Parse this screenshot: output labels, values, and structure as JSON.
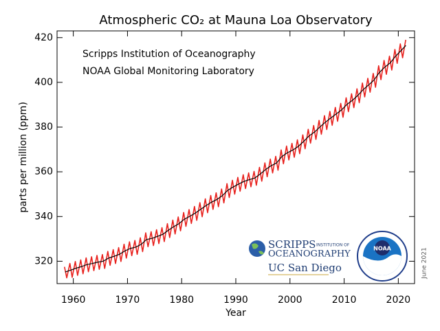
{
  "chart_data": {
    "type": "line",
    "title": "Atmospheric CO₂ at Mauna Loa Observatory",
    "annotations": [
      "Scripps Institution of Oceanography",
      "NOAA Global Monitoring Laboratory"
    ],
    "logos": {
      "scripps": "SCRIPPS",
      "scripps_sub": "INSTITUTION OF",
      "scripps_name": "OCEANOGRAPHY",
      "ucsd": "UC San Diego",
      "noaa": "NOAA"
    },
    "date_note": "June 2021",
    "x_label": "Year",
    "y_label": "parts per million (ppm)",
    "xlim": [
      1957,
      2023
    ],
    "ylim": [
      310,
      423
    ],
    "xticks": [
      1960,
      1970,
      1980,
      1990,
      2000,
      2010,
      2020
    ],
    "yticks": [
      320,
      340,
      360,
      380,
      400,
      420
    ],
    "series": [
      {
        "color": "#e8201c",
        "x": [
          1958.37,
          1958.79,
          1959.37,
          1959.79,
          1960.37,
          1960.79,
          1961.37,
          1961.79,
          1962.37,
          1962.79,
          1963.37,
          1963.79,
          1964.37,
          1964.79,
          1965.37,
          1965.79,
          1966.37,
          1966.79,
          1967.37,
          1967.79,
          1968.37,
          1968.79,
          1969.37,
          1969.79,
          1970.37,
          1970.79,
          1971.37,
          1971.79,
          1972.37,
          1972.79,
          1973.37,
          1973.79,
          1974.37,
          1974.79,
          1975.37,
          1975.79,
          1976.37,
          1976.79,
          1977.37,
          1977.79,
          1978.37,
          1978.79,
          1979.37,
          1979.79,
          1980.37,
          1980.79,
          1981.37,
          1981.79,
          1982.37,
          1982.79,
          1983.37,
          1983.79,
          1984.37,
          1984.79,
          1985.37,
          1985.79,
          1986.37,
          1986.79,
          1987.37,
          1987.79,
          1988.37,
          1988.79,
          1989.37,
          1989.79,
          1990.37,
          1990.79,
          1991.37,
          1991.79,
          1992.37,
          1992.79,
          1993.37,
          1993.79,
          1994.37,
          1994.79,
          1995.37,
          1995.79,
          1996.37,
          1996.79,
          1997.37,
          1997.79,
          1998.37,
          1998.79,
          1999.37,
          1999.79,
          2000.37,
          2000.79,
          2001.37,
          2001.79,
          2002.37,
          2002.79,
          2003.37,
          2003.79,
          2004.37,
          2004.79,
          2005.37,
          2005.79,
          2006.37,
          2006.79,
          2007.37,
          2007.79,
          2008.37,
          2008.79,
          2009.37,
          2009.79,
          2010.37,
          2010.79,
          2011.37,
          2011.79,
          2012.37,
          2012.79,
          2013.37,
          2013.79,
          2014.37,
          2014.79,
          2015.37,
          2015.79,
          2016.37,
          2016.79,
          2017.37,
          2017.79,
          2018.37,
          2018.79,
          2019.37,
          2019.79,
          2020.37,
          2020.79,
          2021.37
        ],
        "values": [
          317.5,
          312.6,
          319.0,
          312.8,
          319.9,
          313.7,
          320.6,
          314.4,
          321.5,
          315.3,
          322.0,
          315.8,
          322.6,
          316.4,
          323.0,
          316.8,
          324.4,
          318.2,
          325.2,
          319.0,
          326.1,
          319.9,
          327.6,
          321.4,
          328.7,
          322.5,
          329.3,
          323.1,
          330.5,
          324.3,
          332.7,
          326.5,
          333.2,
          327.0,
          334.1,
          327.9,
          335.0,
          328.8,
          336.8,
          330.6,
          338.4,
          332.2,
          339.8,
          333.6,
          341.8,
          335.6,
          343.1,
          336.9,
          344.5,
          338.3,
          346.2,
          339.9,
          347.9,
          341.7,
          349.4,
          343.2,
          350.6,
          344.4,
          352.3,
          346.1,
          354.7,
          348.5,
          356.2,
          350.0,
          357.5,
          351.3,
          358.7,
          352.5,
          359.5,
          353.3,
          360.2,
          354.0,
          362.0,
          355.8,
          364.0,
          357.8,
          365.7,
          359.5,
          366.9,
          360.7,
          369.8,
          363.6,
          371.5,
          365.3,
          372.7,
          366.5,
          374.3,
          368.1,
          376.5,
          370.3,
          379.0,
          372.8,
          380.7,
          374.5,
          383.0,
          376.8,
          385.1,
          378.9,
          387.0,
          380.8,
          388.8,
          382.6,
          390.6,
          384.4,
          393.1,
          386.9,
          394.9,
          388.7,
          397.1,
          390.9,
          399.7,
          393.5,
          401.8,
          395.6,
          404.0,
          397.8,
          407.4,
          401.2,
          409.8,
          403.6,
          411.7,
          405.5,
          414.7,
          408.5,
          417.2,
          411.0,
          419.0
        ]
      },
      {
        "color": "#000000",
        "x": [
          1958.5,
          1959.5,
          1960.5,
          1961.5,
          1962.5,
          1963.5,
          1964.5,
          1965.5,
          1966.5,
          1967.5,
          1968.5,
          1969.5,
          1970.5,
          1971.5,
          1972.5,
          1973.5,
          1974.5,
          1975.5,
          1976.5,
          1977.5,
          1978.5,
          1979.5,
          1980.5,
          1981.5,
          1982.5,
          1983.5,
          1984.5,
          1985.5,
          1986.5,
          1987.5,
          1988.5,
          1989.5,
          1990.5,
          1991.5,
          1992.5,
          1993.5,
          1994.5,
          1995.5,
          1996.5,
          1997.5,
          1998.5,
          1999.5,
          2000.5,
          2001.5,
          2002.5,
          2003.5,
          2004.5,
          2005.5,
          2006.5,
          2007.5,
          2008.5,
          2009.5,
          2010.5,
          2011.5,
          2012.5,
          2013.5,
          2014.5,
          2015.5,
          2016.5,
          2017.5,
          2018.5,
          2019.5,
          2020.5,
          2021.4
        ],
        "values": [
          315.2,
          316.0,
          316.9,
          317.6,
          318.5,
          319.0,
          319.6,
          320.0,
          321.4,
          322.2,
          323.1,
          324.6,
          325.7,
          326.3,
          327.5,
          329.7,
          330.2,
          331.1,
          332.0,
          333.8,
          335.4,
          336.8,
          338.8,
          340.1,
          341.5,
          343.2,
          344.9,
          346.4,
          347.6,
          349.3,
          351.7,
          353.2,
          354.5,
          355.7,
          356.5,
          357.2,
          359.0,
          361.0,
          362.7,
          363.9,
          366.8,
          368.5,
          369.7,
          371.3,
          373.5,
          376.0,
          377.7,
          380.0,
          382.1,
          384.0,
          385.8,
          387.6,
          390.1,
          391.9,
          394.1,
          396.7,
          398.8,
          401.0,
          404.4,
          406.8,
          408.7,
          411.7,
          414.2,
          416.5
        ]
      }
    ]
  }
}
